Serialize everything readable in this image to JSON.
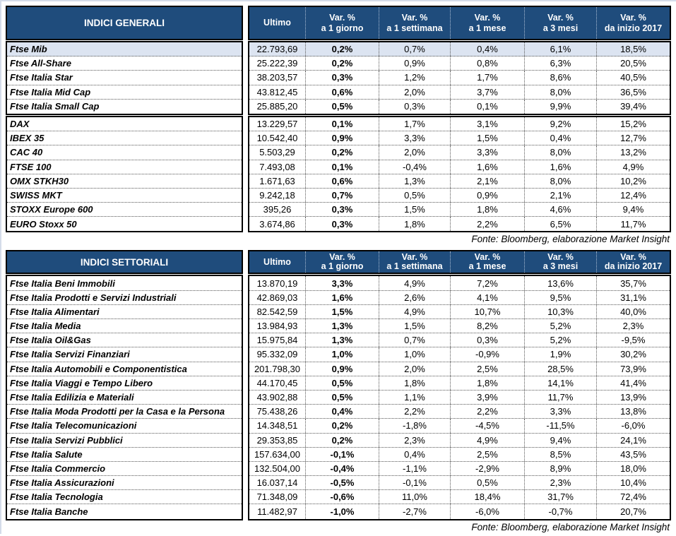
{
  "colors": {
    "header_bg": "#1f4c7c",
    "header_text": "#ffffff",
    "highlight_row_bg": "#dce4f1",
    "border": "#000000",
    "page_edge_line": "#d4dce9"
  },
  "columns": [
    {
      "top": "Ultimo",
      "bottom": ""
    },
    {
      "top": "Var. %",
      "bottom": "a 1 giorno"
    },
    {
      "top": "Var. %",
      "bottom": "a 1 settimana"
    },
    {
      "top": "Var. %",
      "bottom": "a 1 mese"
    },
    {
      "top": "Var. %",
      "bottom": "a 3 mesi"
    },
    {
      "top": "Var. %",
      "bottom": "da inizio 2017"
    }
  ],
  "source_note": "Fonte: Bloomberg, elaborazione Market Insight",
  "tables": [
    {
      "title": "INDICI GENERALI",
      "groups": [
        {
          "rows": [
            {
              "label": "Ftse Mib",
              "highlight": true,
              "values": [
                "22.793,69",
                "0,2%",
                "0,7%",
                "0,4%",
                "6,1%",
                "18,5%"
              ]
            },
            {
              "label": "Ftse All-Share",
              "values": [
                "25.222,39",
                "0,2%",
                "0,9%",
                "0,8%",
                "6,3%",
                "20,5%"
              ]
            },
            {
              "label": "Ftse Italia Star",
              "values": [
                "38.203,57",
                "0,3%",
                "1,2%",
                "1,7%",
                "8,6%",
                "40,5%"
              ]
            },
            {
              "label": "Ftse Italia Mid Cap",
              "values": [
                "43.812,45",
                "0,6%",
                "2,0%",
                "3,7%",
                "8,0%",
                "36,5%"
              ]
            },
            {
              "label": "Ftse Italia Small Cap",
              "values": [
                "25.885,20",
                "0,5%",
                "0,3%",
                "0,1%",
                "9,9%",
                "39,4%"
              ]
            }
          ]
        },
        {
          "rows": [
            {
              "label": "DAX",
              "values": [
                "13.229,57",
                "0,1%",
                "1,7%",
                "3,1%",
                "9,2%",
                "15,2%"
              ]
            },
            {
              "label": "IBEX 35",
              "values": [
                "10.542,40",
                "0,9%",
                "3,3%",
                "1,5%",
                "0,4%",
                "12,7%"
              ]
            },
            {
              "label": "CAC 40",
              "values": [
                "5.503,29",
                "0,2%",
                "2,0%",
                "3,3%",
                "8,0%",
                "13,2%"
              ]
            },
            {
              "label": "FTSE 100",
              "values": [
                "7.493,08",
                "0,1%",
                "-0,4%",
                "1,6%",
                "1,6%",
                "4,9%"
              ]
            },
            {
              "label": "OMX STKH30",
              "values": [
                "1.671,63",
                "0,6%",
                "1,3%",
                "2,1%",
                "8,0%",
                "10,2%"
              ]
            },
            {
              "label": "SWISS MKT",
              "values": [
                "9.242,18",
                "0,7%",
                "0,5%",
                "0,9%",
                "2,1%",
                "12,4%"
              ]
            },
            {
              "label": "STOXX Europe 600",
              "values": [
                "395,26",
                "0,3%",
                "1,5%",
                "1,8%",
                "4,6%",
                "9,4%"
              ]
            },
            {
              "label": "EURO Stoxx 50",
              "values": [
                "3.674,86",
                "0,3%",
                "1,8%",
                "2,2%",
                "6,5%",
                "11,7%"
              ]
            }
          ]
        }
      ]
    },
    {
      "title": "INDICI SETTORIALI",
      "groups": [
        {
          "rows": [
            {
              "label": "Ftse Italia Beni Immobili",
              "values": [
                "13.870,19",
                "3,3%",
                "4,9%",
                "7,2%",
                "13,6%",
                "35,7%"
              ]
            },
            {
              "label": "Ftse Italia Prodotti e Servizi Industriali",
              "values": [
                "42.869,03",
                "1,6%",
                "2,6%",
                "4,1%",
                "9,5%",
                "31,1%"
              ]
            },
            {
              "label": "Ftse Italia Alimentari",
              "values": [
                "82.542,59",
                "1,5%",
                "4,9%",
                "10,7%",
                "10,3%",
                "40,0%"
              ]
            },
            {
              "label": "Ftse Italia Media",
              "values": [
                "13.984,93",
                "1,3%",
                "1,5%",
                "8,2%",
                "5,2%",
                "2,3%"
              ]
            },
            {
              "label": "Ftse Italia Oil&Gas",
              "values": [
                "15.975,84",
                "1,3%",
                "0,7%",
                "0,3%",
                "5,2%",
                "-9,5%"
              ]
            },
            {
              "label": "Ftse Italia Servizi Finanziari",
              "values": [
                "95.332,09",
                "1,0%",
                "1,0%",
                "-0,9%",
                "1,9%",
                "30,2%"
              ]
            },
            {
              "label": "Ftse Italia Automobili e Componentistica",
              "values": [
                "201.798,30",
                "0,9%",
                "2,0%",
                "2,5%",
                "28,5%",
                "73,9%"
              ]
            },
            {
              "label": "Ftse Italia Viaggi e Tempo Libero",
              "values": [
                "44.170,45",
                "0,5%",
                "1,8%",
                "1,8%",
                "14,1%",
                "41,4%"
              ]
            },
            {
              "label": "Ftse Italia Edilizia e Materiali",
              "values": [
                "43.902,88",
                "0,5%",
                "1,1%",
                "3,9%",
                "11,7%",
                "13,9%"
              ]
            },
            {
              "label": "Ftse Italia Moda Prodotti per la Casa e la Persona",
              "values": [
                "75.438,26",
                "0,4%",
                "2,2%",
                "2,2%",
                "3,3%",
                "13,8%"
              ]
            },
            {
              "label": "Ftse Italia Telecomunicazioni",
              "values": [
                "14.348,51",
                "0,2%",
                "-1,8%",
                "-4,5%",
                "-11,5%",
                "-6,0%"
              ]
            },
            {
              "label": "Ftse Italia Servizi Pubblici",
              "values": [
                "29.353,85",
                "0,2%",
                "2,3%",
                "4,9%",
                "9,4%",
                "24,1%"
              ]
            },
            {
              "label": "Ftse Italia Salute",
              "values": [
                "157.634,00",
                "-0,1%",
                "0,4%",
                "2,5%",
                "8,5%",
                "43,5%"
              ]
            },
            {
              "label": "Ftse Italia Commercio",
              "values": [
                "132.504,00",
                "-0,4%",
                "-1,1%",
                "-2,9%",
                "8,9%",
                "18,0%"
              ]
            },
            {
              "label": "Ftse Italia Assicurazioni",
              "values": [
                "16.037,14",
                "-0,5%",
                "-0,1%",
                "0,5%",
                "2,3%",
                "10,4%"
              ]
            },
            {
              "label": "Ftse Italia Tecnologia",
              "values": [
                "71.348,09",
                "-0,6%",
                "11,0%",
                "18,4%",
                "31,7%",
                "72,4%"
              ]
            },
            {
              "label": "Ftse Italia Banche",
              "values": [
                "11.482,97",
                "-1,0%",
                "-2,7%",
                "-6,0%",
                "-0,7%",
                "20,7%"
              ]
            }
          ]
        }
      ]
    }
  ]
}
